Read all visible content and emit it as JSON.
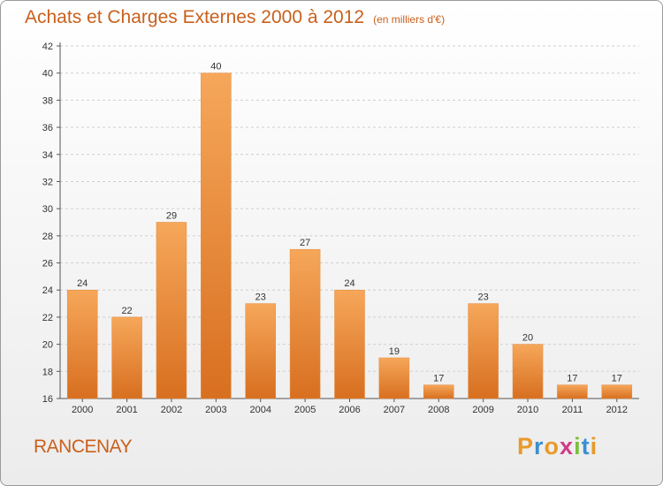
{
  "header": {
    "title": "Achats et Charges Externes 2000 à 2012",
    "unit": "(en milliers d'€)"
  },
  "footer": {
    "location": "RANCENAY",
    "logo_text": "Proxiti"
  },
  "colors": {
    "accent": "#c9601c",
    "bar_light": "#f6a75a",
    "bar_dark": "#d86f20"
  },
  "chart_data": {
    "type": "bar",
    "title": "Achats et Charges Externes 2000 à 2012",
    "subtitle": "(en milliers d'€)",
    "categories": [
      "2000",
      "2001",
      "2002",
      "2003",
      "2004",
      "2005",
      "2006",
      "2007",
      "2008",
      "2009",
      "2010",
      "2011",
      "2012"
    ],
    "values": [
      24,
      22,
      29,
      40,
      23,
      27,
      24,
      19,
      17,
      23,
      20,
      17,
      17
    ],
    "ylim": [
      16,
      42
    ],
    "yticks": [
      16,
      18,
      20,
      22,
      24,
      26,
      28,
      30,
      32,
      34,
      36,
      38,
      40,
      42
    ],
    "grid": true,
    "xlabel": "",
    "ylabel": ""
  }
}
